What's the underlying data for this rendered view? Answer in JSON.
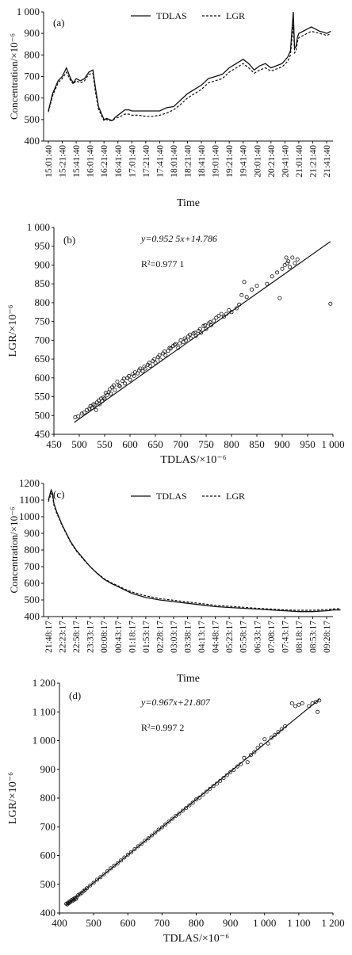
{
  "chart_data": [
    {
      "id": "a",
      "type": "line",
      "panel_label": "(a)",
      "xlabel": "Time",
      "ylabel": "Concentration/×10⁻⁶",
      "ylim": [
        400,
        1000
      ],
      "yticks": [
        "400",
        "500",
        "600",
        "700",
        "800",
        "900",
        "1 000"
      ],
      "ytick_values": [
        400,
        500,
        600,
        700,
        800,
        900,
        1000
      ],
      "categories": [
        "15:01:40",
        "15:21:40",
        "15:41:40",
        "16:01:40",
        "16:21:40",
        "16:41:40",
        "17:01:40",
        "17:21:40",
        "17:41:40",
        "18:01:40",
        "18:21:40",
        "18:41:40",
        "19:01:40",
        "19:21:40",
        "19:41:40",
        "20:01:40",
        "20:21:40",
        "20:41:40",
        "21:01:40",
        "21:21:40",
        "21:41:40"
      ],
      "series": [
        {
          "name": "TDLAS",
          "style": "solid",
          "x": [
            0,
            0.3,
            0.7,
            1,
            1.3,
            1.6,
            1.8,
            2,
            2.3,
            2.6,
            2.9,
            3.2,
            3.4,
            3.6,
            3.8,
            4.0,
            4.2,
            4.4,
            4.6,
            4.8,
            5.2,
            5.5,
            5.8,
            6.0,
            6.5,
            7,
            7.5,
            8,
            8.5,
            9,
            9.5,
            10,
            10.5,
            11,
            11.5,
            12,
            12.5,
            13,
            13.5,
            14,
            14.4,
            14.8,
            15.2,
            15.6,
            16,
            16.4,
            16.8,
            17.2,
            17.4,
            17.6,
            17.7,
            17.8,
            17.9,
            18.0,
            18.3,
            18.6,
            18.9,
            19.2,
            19.5,
            19.8,
            20.0,
            20.3
          ],
          "values": [
            540,
            620,
            680,
            700,
            740,
            690,
            670,
            690,
            680,
            690,
            720,
            730,
            640,
            560,
            530,
            500,
            505,
            500,
            495,
            510,
            530,
            545,
            545,
            540,
            540,
            540,
            540,
            540,
            555,
            560,
            590,
            620,
            640,
            660,
            690,
            700,
            710,
            740,
            760,
            780,
            760,
            730,
            750,
            760,
            740,
            750,
            760,
            790,
            820,
            1000,
            830,
            840,
            880,
            900,
            910,
            920,
            930,
            920,
            910,
            905,
            900,
            910
          ]
        },
        {
          "name": "LGR",
          "style": "dashed",
          "x": [
            0,
            0.3,
            0.7,
            1,
            1.3,
            1.6,
            1.8,
            2,
            2.3,
            2.6,
            2.9,
            3.2,
            3.4,
            3.6,
            3.8,
            4.0,
            4.2,
            4.4,
            4.6,
            4.8,
            5.2,
            5.5,
            5.8,
            6.0,
            6.5,
            7,
            7.5,
            8,
            8.5,
            9,
            9.5,
            10,
            10.5,
            11,
            11.5,
            12,
            12.5,
            13,
            13.5,
            14,
            14.4,
            14.8,
            15.2,
            15.6,
            16,
            16.4,
            16.8,
            17.2,
            17.4,
            17.6,
            17.7,
            17.8,
            17.9,
            18.0,
            18.3,
            18.6,
            18.9,
            19.2,
            19.5,
            19.8,
            20.0,
            20.3
          ],
          "values": [
            535,
            610,
            670,
            690,
            720,
            680,
            665,
            680,
            670,
            680,
            710,
            715,
            620,
            550,
            520,
            495,
            500,
            495,
            495,
            505,
            515,
            525,
            525,
            520,
            520,
            515,
            515,
            520,
            530,
            545,
            570,
            600,
            620,
            640,
            670,
            680,
            690,
            720,
            740,
            760,
            740,
            715,
            730,
            740,
            725,
            735,
            745,
            770,
            800,
            940,
            810,
            820,
            860,
            880,
            890,
            900,
            910,
            905,
            900,
            895,
            890,
            900
          ]
        }
      ]
    },
    {
      "id": "b",
      "type": "scatter",
      "panel_label": "(b)",
      "xlabel": "TDLAS/×10⁻⁶",
      "ylabel": "LGR/×10⁻⁶",
      "xlim": [
        450,
        1000
      ],
      "ylim": [
        450,
        1000
      ],
      "xticks": [
        "450",
        "500",
        "550",
        "600",
        "650",
        "700",
        "750",
        "800",
        "850",
        "900",
        "950",
        "1 000"
      ],
      "xtick_values": [
        450,
        500,
        550,
        600,
        650,
        700,
        750,
        800,
        850,
        900,
        950,
        1000
      ],
      "yticks": [
        "450",
        "500",
        "550",
        "600",
        "650",
        "700",
        "750",
        "800",
        "850",
        "900",
        "950",
        "1 000"
      ],
      "ytick_values": [
        450,
        500,
        550,
        600,
        650,
        700,
        750,
        800,
        850,
        900,
        950,
        1000
      ],
      "equation": "y=0.952 5x+14.786",
      "r2": "R²=0.977 1",
      "fit": {
        "slope": 0.9525,
        "intercept": 14.786,
        "x_range": [
          490,
          995
        ]
      },
      "points_x": [
        492,
        498,
        505,
        510,
        515,
        520,
        522,
        525,
        528,
        530,
        533,
        535,
        538,
        540,
        543,
        545,
        548,
        550,
        552,
        555,
        558,
        560,
        562,
        565,
        568,
        570,
        575,
        578,
        580,
        585,
        588,
        590,
        595,
        598,
        600,
        605,
        608,
        610,
        615,
        618,
        620,
        625,
        628,
        630,
        635,
        638,
        640,
        645,
        648,
        650,
        655,
        658,
        660,
        665,
        668,
        670,
        675,
        678,
        680,
        685,
        688,
        690,
        695,
        698,
        700,
        705,
        708,
        710,
        715,
        718,
        720,
        725,
        728,
        730,
        735,
        738,
        740,
        745,
        748,
        750,
        755,
        758,
        760,
        765,
        770,
        775,
        780,
        785,
        790,
        795,
        800,
        810,
        815,
        820,
        825,
        830,
        840,
        850,
        870,
        880,
        890,
        895,
        900,
        905,
        908,
        910,
        912,
        915,
        920,
        925,
        930,
        995
      ],
      "points_y": [
        495,
        498,
        505,
        508,
        515,
        518,
        525,
        520,
        530,
        528,
        515,
        535,
        540,
        530,
        545,
        538,
        548,
        545,
        560,
        555,
        562,
        570,
        558,
        575,
        580,
        568,
        590,
        580,
        578,
        592,
        598,
        585,
        600,
        605,
        595,
        610,
        605,
        615,
        612,
        620,
        625,
        618,
        630,
        625,
        635,
        640,
        632,
        645,
        650,
        640,
        655,
        660,
        648,
        665,
        670,
        660,
        672,
        680,
        678,
        685,
        688,
        690,
        680,
        692,
        700,
        695,
        705,
        700,
        710,
        715,
        705,
        718,
        720,
        712,
        725,
        730,
        720,
        738,
        740,
        730,
        745,
        748,
        740,
        752,
        760,
        765,
        770,
        762,
        770,
        780,
        775,
        785,
        795,
        820,
        855,
        815,
        835,
        845,
        850,
        870,
        880,
        812,
        890,
        900,
        920,
        905,
        910,
        895,
        920,
        905,
        915,
        797
      ]
    },
    {
      "id": "c",
      "type": "line",
      "panel_label": "(c)",
      "xlabel": "Time",
      "ylabel": "Concentration/×10⁻⁶",
      "ylim": [
        400,
        1200
      ],
      "yticks": [
        "400",
        "500",
        "600",
        "700",
        "800",
        "900",
        "1000",
        "1100",
        "1200"
      ],
      "ytick_values": [
        400,
        500,
        600,
        700,
        800,
        900,
        1000,
        1100,
        1200
      ],
      "categories": [
        "21:48:17",
        "22:23:17",
        "22:58:17",
        "23:33:17",
        "00:08:17",
        "00:43:17",
        "01:18:17",
        "01:53:17",
        "02:28:17",
        "03:03:17",
        "03:38:17",
        "04:13:17",
        "04:48:17",
        "05:23:17",
        "05:58:17",
        "06:33:17",
        "07:08:17",
        "07:43:17",
        "08:18:17",
        "08:53:17",
        "09:28:17"
      ],
      "series": [
        {
          "name": "TDLAS",
          "style": "solid",
          "x": [
            0,
            0.1,
            0.2,
            0.3,
            0.4,
            0.6,
            0.8,
            1,
            1.3,
            1.6,
            2,
            2.5,
            3,
            3.5,
            4,
            4.5,
            5,
            5.5,
            6,
            7,
            8,
            9,
            10,
            11,
            12,
            13,
            14,
            15,
            16,
            17,
            18,
            19,
            20,
            20.5,
            21
          ],
          "values": [
            1100,
            1130,
            1160,
            1140,
            1080,
            1030,
            990,
            950,
            900,
            850,
            800,
            750,
            700,
            660,
            625,
            600,
            580,
            560,
            540,
            515,
            500,
            490,
            480,
            470,
            460,
            455,
            450,
            445,
            440,
            435,
            430,
            430,
            435,
            440,
            440
          ]
        },
        {
          "name": "LGR",
          "style": "dashed",
          "x": [
            0,
            0.1,
            0.2,
            0.3,
            0.4,
            0.6,
            0.8,
            1,
            1.3,
            1.6,
            2,
            2.5,
            3,
            3.5,
            4,
            4.5,
            5,
            5.5,
            6,
            7,
            8,
            9,
            10,
            11,
            12,
            13,
            14,
            15,
            16,
            17,
            18,
            19,
            20,
            20.5,
            21
          ],
          "values": [
            1090,
            1115,
            1140,
            1125,
            1070,
            1020,
            985,
            945,
            895,
            845,
            795,
            745,
            700,
            662,
            628,
            605,
            585,
            565,
            548,
            525,
            508,
            498,
            488,
            478,
            468,
            462,
            456,
            450,
            445,
            440,
            438,
            438,
            442,
            446,
            448
          ]
        }
      ]
    },
    {
      "id": "d",
      "type": "scatter",
      "panel_label": "(d)",
      "xlabel": "TDLAS/×10⁻⁶",
      "ylabel": "LGR/×10⁻⁶",
      "xlim": [
        400,
        1200
      ],
      "ylim": [
        400,
        1200
      ],
      "xticks": [
        "400",
        "500",
        "600",
        "700",
        "800",
        "900",
        "1 000",
        "1 100",
        "1 200"
      ],
      "xtick_values": [
        400,
        500,
        600,
        700,
        800,
        900,
        1000,
        1100,
        1200
      ],
      "yticks": [
        "400",
        "500",
        "600",
        "700",
        "800",
        "900",
        "1 000",
        "1 100",
        "1 200"
      ],
      "ytick_values": [
        400,
        500,
        600,
        700,
        800,
        900,
        1000,
        1100,
        1200
      ],
      "equation": "y=0.967x+21.807",
      "r2": "R²=0.997 2",
      "fit": {
        "slope": 0.967,
        "intercept": 21.807,
        "x_range": [
          420,
          1160
        ]
      },
      "points_x": [
        420,
        423,
        425,
        427,
        430,
        432,
        435,
        438,
        440,
        443,
        445,
        448,
        450,
        455,
        460,
        465,
        470,
        475,
        480,
        490,
        500,
        510,
        520,
        530,
        540,
        550,
        560,
        570,
        580,
        590,
        600,
        610,
        620,
        630,
        640,
        650,
        660,
        670,
        680,
        690,
        700,
        710,
        720,
        730,
        740,
        750,
        760,
        770,
        780,
        790,
        800,
        810,
        820,
        830,
        840,
        850,
        860,
        870,
        880,
        890,
        900,
        910,
        920,
        930,
        940,
        950,
        960,
        970,
        980,
        990,
        1000,
        1010,
        1020,
        1030,
        1040,
        1050,
        1060,
        1080,
        1090,
        1100,
        1110,
        1130,
        1140,
        1150,
        1155,
        1160
      ],
      "points_y": [
        432,
        430,
        436,
        434,
        440,
        438,
        445,
        442,
        448,
        446,
        452,
        449,
        455,
        462,
        466,
        470,
        476,
        480,
        486,
        496,
        505,
        516,
        525,
        535,
        545,
        555,
        565,
        573,
        583,
        593,
        603,
        612,
        622,
        632,
        641,
        651,
        660,
        670,
        680,
        690,
        698,
        708,
        718,
        728,
        738,
        746,
        756,
        765,
        775,
        784,
        795,
        802,
        812,
        822,
        832,
        842,
        850,
        860,
        870,
        880,
        890,
        898,
        910,
        918,
        940,
        925,
        950,
        960,
        975,
        985,
        1005,
        990,
        1010,
        1020,
        1030,
        1040,
        1050,
        1130,
        1120,
        1125,
        1130,
        1120,
        1130,
        1135,
        1100,
        1140
      ]
    }
  ]
}
